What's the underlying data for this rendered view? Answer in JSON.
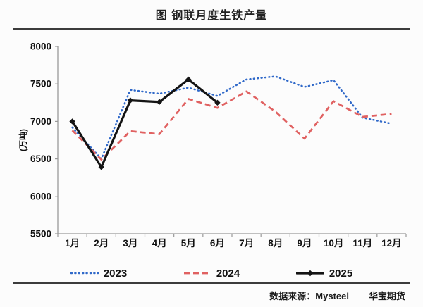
{
  "title": "图  钢联月度生铁产量",
  "source": {
    "label": "数据来源：Mysteel",
    "brand": "华宝期货"
  },
  "colors": {
    "series_2023": "#3069c9",
    "series_2024": "#e06161",
    "series_2025": "#141414",
    "axis": "#9a9a9a",
    "divider": "#3c3c3c"
  },
  "chart_data": {
    "type": "line",
    "title": "图 钢联月度生铁产量",
    "xlabel": "",
    "ylabel": "(万吨)",
    "ylim": [
      5500,
      8000
    ],
    "yticks": [
      5500,
      6000,
      6500,
      7000,
      7500,
      8000
    ],
    "grid": false,
    "legend_position": "bottom",
    "categories": [
      "1月",
      "2月",
      "3月",
      "4月",
      "5月",
      "6月",
      "7月",
      "8月",
      "9月",
      "10月",
      "11月",
      "12月"
    ],
    "series": [
      {
        "name": "2023",
        "style": "dotted",
        "color": "#3069c9",
        "values": [
          6920,
          6500,
          7420,
          7370,
          7450,
          7340,
          7560,
          7600,
          7460,
          7550,
          7050,
          6970
        ]
      },
      {
        "name": "2024",
        "style": "dashed",
        "color": "#e06161",
        "values": [
          6880,
          6490,
          6870,
          6830,
          7300,
          7180,
          7400,
          7130,
          6770,
          7270,
          7060,
          7100
        ]
      },
      {
        "name": "2025",
        "style": "solid-diamond",
        "color": "#141414",
        "values": [
          7000,
          6390,
          7280,
          7260,
          7560,
          7250
        ]
      }
    ]
  }
}
